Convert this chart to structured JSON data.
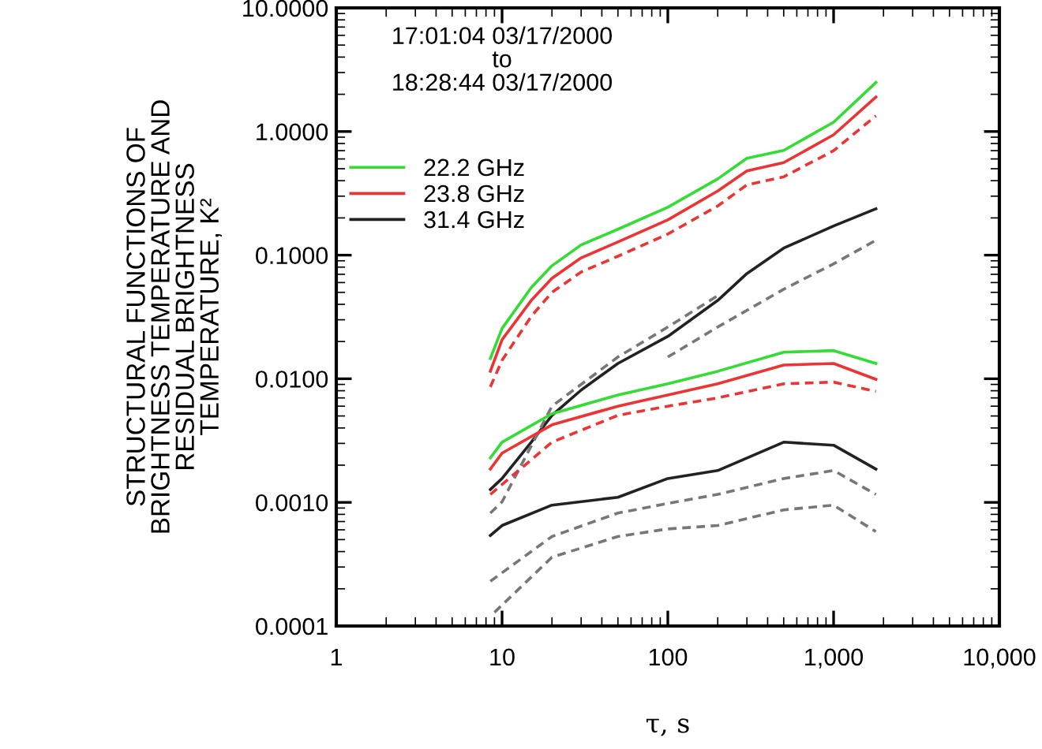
{
  "chart_data": {
    "type": "line",
    "xlabel": "τ, s",
    "ylabel": "STRUCTURAL FUNCTIONS OF\nBRIGHTNESS TEMPERATURE AND\nRESIDUAL BRIGHTNESS\nTEMPERATURE, K²",
    "log": "xy",
    "xlim": [
      1,
      10000
    ],
    "ylim": [
      0.0001,
      10
    ],
    "xticks": [
      1,
      10,
      100,
      {
        "value": 1000,
        "label": "1,000"
      },
      {
        "value": 10000,
        "label": "10,000"
      }
    ],
    "yticks": [
      {
        "value": 0.0001,
        "label": "0.0001"
      },
      {
        "value": 0.001,
        "label": "0.0010"
      },
      {
        "value": 0.01,
        "label": "0.0100"
      },
      {
        "value": 0.1,
        "label": "0.1000"
      },
      {
        "value": 1,
        "label": "1.0000"
      },
      {
        "value": 10,
        "label": "10.0000"
      }
    ],
    "grid": false,
    "legend": "top left",
    "marker": "none",
    "annotations": [
      "17:01:04 03/17/2000\nto\n18:28:44 03/17/2000"
    ],
    "series": [
      {
        "name": "22.2 GHz",
        "color": "#33dd33",
        "line_style": "solid",
        "x": [
          8.5,
          10,
          15,
          20,
          30,
          50,
          100,
          200,
          300,
          500,
          1000,
          1800
        ],
        "values": [
          0.0146,
          0.0255,
          0.0546,
          0.082,
          0.121,
          0.162,
          0.244,
          0.414,
          0.607,
          0.703,
          1.19,
          2.49
        ]
      },
      {
        "name": "23.8 GHz",
        "color": "#ee3333",
        "line_style": "solid",
        "x": [
          8.5,
          10,
          15,
          20,
          30,
          50,
          100,
          200,
          300,
          500,
          1000,
          1800
        ],
        "values": [
          0.0115,
          0.0207,
          0.043,
          0.065,
          0.095,
          0.128,
          0.193,
          0.33,
          0.48,
          0.56,
          0.94,
          1.9
        ]
      },
      {
        "name": "31.4 GHz",
        "color": "#222222",
        "line_style": "solid",
        "x": [
          8.5,
          10,
          15,
          20,
          30,
          50,
          100,
          200,
          300,
          500,
          1000,
          1800
        ],
        "values": [
          0.00127,
          0.00156,
          0.00307,
          0.00506,
          0.0081,
          0.0133,
          0.022,
          0.043,
          0.071,
          0.114,
          0.172,
          0.237
        ]
      },
      {
        "color": "#ee3333",
        "line_style": "dashed",
        "x": [
          8.5,
          10,
          15,
          20,
          30,
          50,
          100,
          200,
          300,
          500,
          1000,
          1800
        ],
        "values": [
          0.0086,
          0.0141,
          0.032,
          0.05,
          0.073,
          0.098,
          0.148,
          0.25,
          0.37,
          0.43,
          0.7,
          1.34
        ]
      },
      {
        "color": "#777777",
        "line_style": "dashed",
        "x": [
          8.5,
          10,
          20,
          50,
          100,
          200
        ],
        "values": [
          0.00082,
          0.00101,
          0.006,
          0.015,
          0.0262,
          0.047
        ]
      },
      {
        "color": "#777777",
        "line_style": "dashed",
        "x": [
          100,
          200,
          500,
          1000,
          1800
        ],
        "values": [
          0.015,
          0.0262,
          0.053,
          0.085,
          0.132
        ]
      },
      {
        "color": "#33dd33",
        "line_style": "solid",
        "x": [
          8.5,
          10,
          20,
          50,
          100,
          200,
          500,
          1000,
          1800
        ],
        "values": [
          0.00229,
          0.00307,
          0.00521,
          0.0074,
          0.0091,
          0.0115,
          0.0164,
          0.0169,
          0.0133
        ]
      },
      {
        "color": "#ee3333",
        "line_style": "solid",
        "x": [
          8.5,
          10,
          20,
          50,
          100,
          200,
          500,
          1000,
          1800
        ],
        "values": [
          0.00186,
          0.0025,
          0.00424,
          0.006,
          0.0074,
          0.0091,
          0.0129,
          0.0133,
          0.0099
        ]
      },
      {
        "color": "#ee3333",
        "line_style": "dashed",
        "x": [
          8.5,
          20,
          50,
          100,
          200,
          500,
          1000,
          1800
        ],
        "values": [
          0.00116,
          0.00307,
          0.00506,
          0.006,
          0.007,
          0.0091,
          0.0094,
          0.0079
        ]
      },
      {
        "color": "#222222",
        "line_style": "solid",
        "x": [
          8.5,
          10,
          20,
          50,
          100,
          200,
          500,
          1000,
          1800
        ],
        "values": [
          0.00054,
          0.00065,
          0.00095,
          0.0011,
          0.00156,
          0.00181,
          0.00307,
          0.0029,
          0.00186
        ]
      },
      {
        "color": "#777777",
        "line_style": "dashed",
        "x": [
          8.5,
          20,
          50,
          100,
          200,
          500,
          1000,
          1800
        ],
        "values": [
          0.00023,
          0.00053,
          0.00082,
          0.00098,
          0.00116,
          0.00156,
          0.00181,
          0.00116
        ]
      },
      {
        "color": "#777777",
        "line_style": "dashed",
        "x": [
          9,
          20,
          50,
          100,
          200,
          500,
          1000,
          1800
        ],
        "values": [
          0.000129,
          0.00036,
          0.00053,
          0.00061,
          0.00065,
          0.00087,
          0.00095,
          0.00058
        ]
      }
    ]
  }
}
